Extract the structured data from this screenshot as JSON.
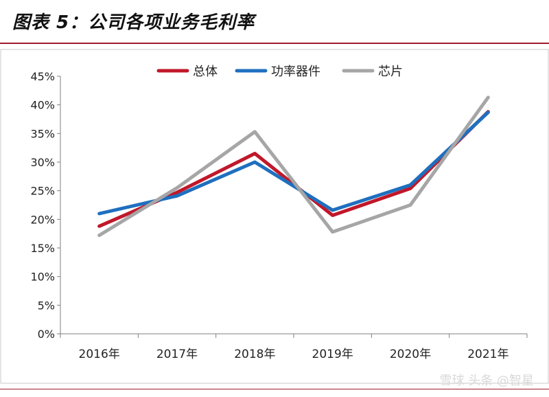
{
  "figure_title": "图表 5：公司各项业务毛利率",
  "watermark": "雪球 头条 @智星",
  "colors": {
    "accent_rule": "#a01a2a"
  },
  "chart_data": {
    "type": "line",
    "title": "",
    "xlabel": "",
    "ylabel": "",
    "categories": [
      "2016年",
      "2017年",
      "2018年",
      "2019年",
      "2020年",
      "2021年"
    ],
    "ylim": [
      0,
      45
    ],
    "yticks": [
      "0%",
      "5%",
      "10%",
      "15%",
      "20%",
      "25%",
      "30%",
      "35%",
      "40%",
      "45%"
    ],
    "grid": false,
    "legend_position": "top",
    "series": [
      {
        "name": "总体",
        "color": "#c0182a",
        "values": [
          18.8,
          24.7,
          31.5,
          20.7,
          25.4,
          38.8
        ]
      },
      {
        "name": "功率器件",
        "color": "#1f6fbf",
        "values": [
          21.0,
          24.1,
          30.0,
          21.6,
          26.0,
          38.7
        ]
      },
      {
        "name": "芯片",
        "color": "#a6a6a6",
        "values": [
          17.2,
          25.5,
          35.3,
          17.8,
          22.5,
          41.3
        ]
      }
    ]
  }
}
